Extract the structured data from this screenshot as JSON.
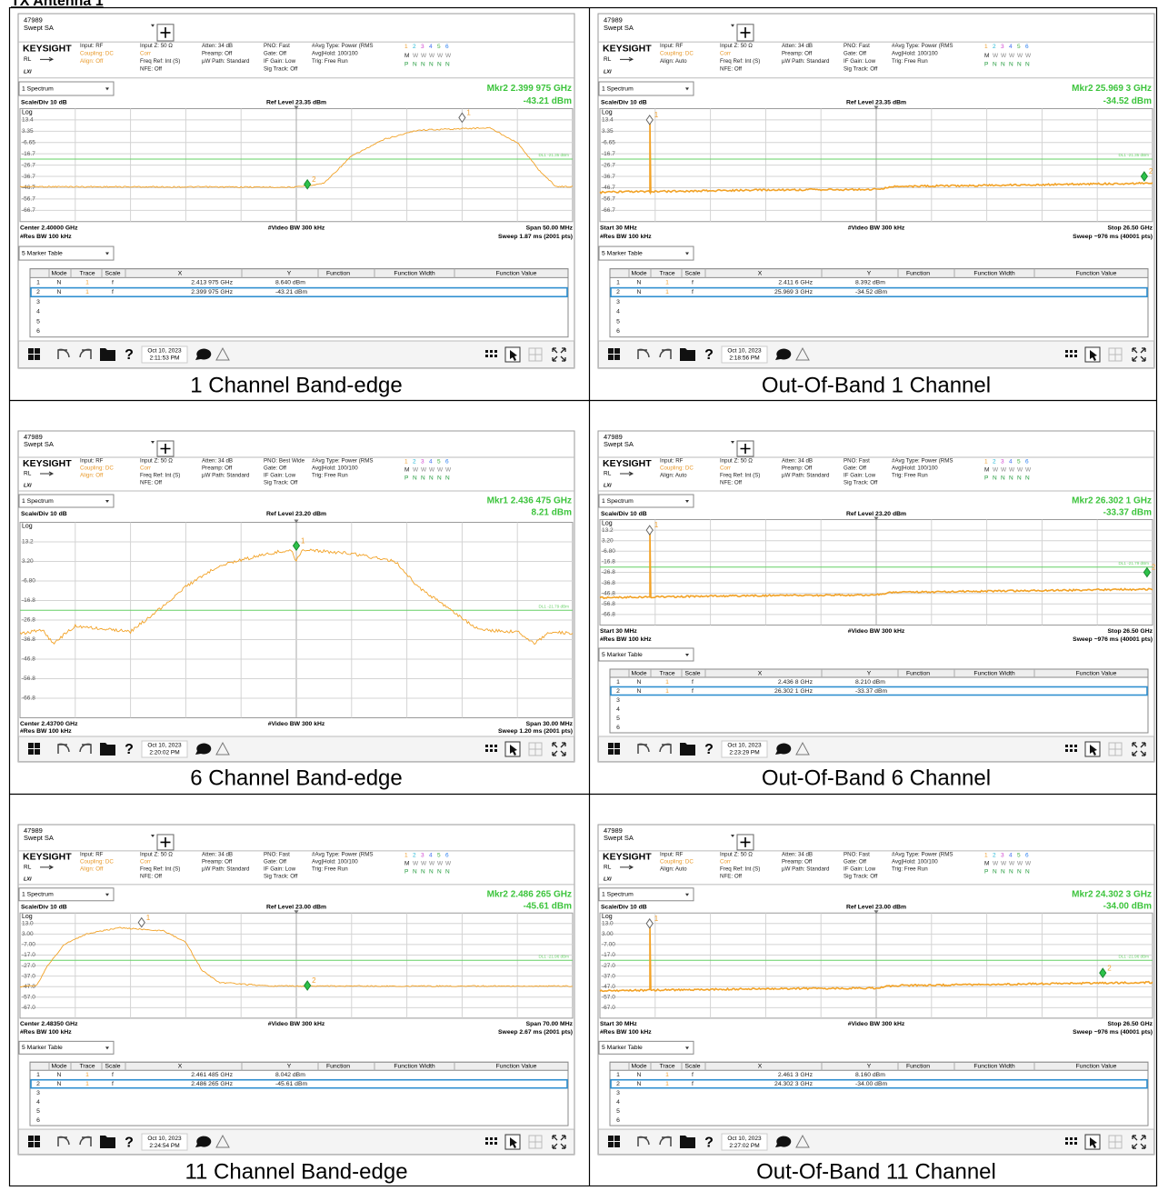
{
  "header": {
    "title": "TX Antenna 1"
  },
  "common": {
    "instrument_id": "47989",
    "mode": "Swept SA",
    "brand": "KEYSIGHT",
    "ref_indicator": "RL",
    "lxi": "LXI",
    "trace_numbers": [
      "1",
      "2",
      "3",
      "4",
      "5",
      "6"
    ],
    "trace_types": [
      "M",
      "W",
      "W",
      "W",
      "W",
      "W"
    ],
    "detectors": [
      "P",
      "N",
      "N",
      "N",
      "N",
      "N"
    ],
    "view": "1 Spectrum",
    "scale": "Scale/Div 10 dB",
    "log": "Log",
    "video_bw": "#Video BW 300 kHz",
    "res_bw": "#Res BW 100 kHz",
    "table_view": "5 Marker Table",
    "table_header": [
      "Mode",
      "Trace",
      "Scale",
      "X",
      "Y",
      "Function",
      "Function Width",
      "Function Value"
    ],
    "help": "?",
    "date": "Oct 10, 2023"
  },
  "panels": [
    {
      "caption": "1 Channel Band-edge",
      "info": [
        [
          "Input: RF",
          {
            "text": "Coupling: DC",
            "color": "#e89a2c"
          },
          {
            "text": "Align: Off",
            "color": "#e89a2c"
          }
        ],
        [
          "Input Z: 50 Ω",
          {
            "text": "Corr",
            "color": "#e89a2c"
          },
          "Freq Ref: Int (S)",
          "NFE: Off"
        ],
        [
          "Atten: 34 dB",
          "Preamp: Off",
          "µW Path: Standard"
        ],
        [
          "PNO: Fast",
          "Gate: Off",
          "IF Gain: Low",
          "Sig Track: Off"
        ],
        [
          "#Avg Type: Power (RMS",
          "Avg|Hold: 100/100",
          "Trig: Free Run"
        ]
      ],
      "marker_readout": "Mkr2 2.399 975 GHz",
      "marker_value": "-43.21 dBm",
      "ref_level": "Ref Level 23.35 dBm",
      "yticks": [
        "13.4",
        "3.35",
        "-6.65",
        "-16.7",
        "-26.7",
        "-36.7",
        "-46.7",
        "-56.7",
        "-66.7"
      ],
      "display_line": "DL1 -21.35 dBm",
      "markers": [
        "1",
        "2"
      ],
      "left_label": "Center 2.40000 GHz",
      "right_label": "Span 50.00 MHz",
      "sweep": "Sweep 1.87 ms (2001 pts)",
      "table_rows": [
        [
          "1",
          "N",
          "1",
          "f",
          "2.413 975 GHz",
          "8.640 dBm"
        ],
        [
          "2",
          "N",
          "1",
          "f",
          "2.399 975 GHz",
          "-43.21 dBm"
        ],
        [
          "3"
        ],
        [
          "4"
        ],
        [
          "5"
        ],
        [
          "6"
        ]
      ],
      "time": "2:11:53 PM"
    },
    {
      "caption": "Out-Of-Band 1 Channel",
      "info": [
        [
          "Input: RF",
          {
            "text": "Coupling: DC",
            "color": "#e89a2c"
          },
          "Align: Auto"
        ],
        [
          "Input Z: 50 Ω",
          {
            "text": "Corr",
            "color": "#e89a2c"
          },
          "Freq Ref: Int (S)",
          "NFE: Off"
        ],
        [
          "Atten: 34 dB",
          "Preamp: Off",
          "µW Path: Standard"
        ],
        [
          "PNO: Fast",
          "Gate: Off",
          "IF Gain: Low",
          "Sig Track: Off"
        ],
        [
          "#Avg Type: Power (RMS",
          "Avg|Hold: 100/100",
          "Trig: Free Run"
        ]
      ],
      "marker_readout": "Mkr2 25.969 3 GHz",
      "marker_value": "-34.52 dBm",
      "ref_level": "Ref Level 23.35 dBm",
      "yticks": [
        "13.4",
        "3.35",
        "-6.65",
        "-16.7",
        "-26.7",
        "-36.7",
        "-46.7",
        "-56.7",
        "-66.7"
      ],
      "display_line": "DL1 -21.35 dBm",
      "markers": [
        "1",
        "2"
      ],
      "left_label": "Start 30 MHz",
      "right_label": "Stop 26.50 GHz",
      "sweep": "Sweep ~976 ms (40001 pts)",
      "table_rows": [
        [
          "1",
          "N",
          "1",
          "f",
          "2.411 6 GHz",
          "8.392 dBm"
        ],
        [
          "2",
          "N",
          "1",
          "f",
          "25.969 3 GHz",
          "-34.52 dBm"
        ],
        [
          "3"
        ],
        [
          "4"
        ],
        [
          "5"
        ],
        [
          "6"
        ]
      ],
      "time": "2:18:56 PM"
    },
    {
      "caption": "6 Channel Band-edge",
      "info": [
        [
          "Input: RF",
          {
            "text": "Coupling: DC",
            "color": "#e89a2c"
          },
          {
            "text": "Align: Off",
            "color": "#e89a2c"
          }
        ],
        [
          "Input Z: 50 Ω",
          {
            "text": "Corr",
            "color": "#e89a2c"
          },
          "Freq Ref: Int (S)",
          "NFE: Off"
        ],
        [
          "Atten: 34 dB",
          "Preamp: Off",
          "µW Path: Standard"
        ],
        [
          "PNO: Best Wide",
          "Gate: Off",
          "IF Gain: Low",
          "Sig Track: Off"
        ],
        [
          "#Avg Type: Power (RMS",
          "Avg|Hold: 100/100",
          "Trig: Free Run"
        ]
      ],
      "marker_readout": "Mkr1 2.436 475 GHz",
      "marker_value": "8.21 dBm",
      "ref_level": "Ref Level 23.20 dBm",
      "yticks": [
        "13.2",
        "3.20",
        "-6.80",
        "-16.8",
        "-26.8",
        "-36.8",
        "-46.8",
        "-56.8",
        "-66.8"
      ],
      "display_line": "DL1 -21.79 dBm",
      "markers": [
        "1"
      ],
      "left_label": "Center 2.43700 GHz",
      "right_label": "Span 30.00 MHz",
      "sweep": "Sweep 1.20 ms (2001 pts)",
      "time": "2:20:02 PM"
    },
    {
      "caption": "Out-Of-Band 6 Channel",
      "info": [
        [
          "Input: RF",
          {
            "text": "Coupling: DC",
            "color": "#e89a2c"
          },
          "Align: Auto"
        ],
        [
          "Input Z: 50 Ω",
          {
            "text": "Corr",
            "color": "#e89a2c"
          },
          "Freq Ref: Int (S)",
          "NFE: Off"
        ],
        [
          "Atten: 34 dB",
          "Preamp: Off",
          "µW Path: Standard"
        ],
        [
          "PNO: Fast",
          "Gate: Off",
          "IF Gain: Low",
          "Sig Track: Off"
        ],
        [
          "#Avg Type: Power (RMS",
          "Avg|Hold: 100/100",
          "Trig: Free Run"
        ]
      ],
      "marker_readout": "Mkr2 26.302 1 GHz",
      "marker_value": "-33.37 dBm",
      "ref_level": "Ref Level 23.20 dBm",
      "yticks": [
        "13.2",
        "3.20",
        "-6.80",
        "-16.8",
        "-26.8",
        "-36.8",
        "-46.8",
        "-56.8",
        "-66.8"
      ],
      "display_line": "DL1 -21.79 dBm",
      "markers": [
        "1",
        "2"
      ],
      "left_label": "Start 30 MHz",
      "right_label": "Stop 26.50 GHz",
      "sweep": "Sweep ~976 ms (40001 pts)",
      "table_rows": [
        [
          "1",
          "N",
          "1",
          "f",
          "2.436 8 GHz",
          "8.210 dBm"
        ],
        [
          "2",
          "N",
          "1",
          "f",
          "26.302 1 GHz",
          "-33.37 dBm"
        ],
        [
          "3"
        ],
        [
          "4"
        ],
        [
          "5"
        ],
        [
          "6"
        ]
      ],
      "time": "2:23:29 PM"
    },
    {
      "caption": "11 Channel Band-edge",
      "info": [
        [
          "Input: RF",
          {
            "text": "Coupling: DC",
            "color": "#e89a2c"
          },
          {
            "text": "Align: Off",
            "color": "#e89a2c"
          }
        ],
        [
          "Input Z: 50 Ω",
          {
            "text": "Corr",
            "color": "#e89a2c"
          },
          "Freq Ref: Int (S)",
          "NFE: Off"
        ],
        [
          "Atten: 34 dB",
          "Preamp: Off",
          "µW Path: Standard"
        ],
        [
          "PNO: Fast",
          "Gate: Off",
          "IF Gain: Low",
          "Sig Track: Off"
        ],
        [
          "#Avg Type: Power (RMS",
          "Avg|Hold: 100/100",
          "Trig: Free Run"
        ]
      ],
      "marker_readout": "Mkr2 2.486 265 GHz",
      "marker_value": "-45.61 dBm",
      "ref_level": "Ref Level 23.00 dBm",
      "yticks": [
        "13.0",
        "3.00",
        "-7.00",
        "-17.0",
        "-27.0",
        "-37.0",
        "-47.0",
        "-57.0",
        "-67.0"
      ],
      "display_line": "DL1 -21.96 dBm",
      "markers": [
        "1",
        "2"
      ],
      "left_label": "Center 2.48350 GHz",
      "right_label": "Span 70.00 MHz",
      "sweep": "Sweep 2.67 ms (2001 pts)",
      "table_rows": [
        [
          "1",
          "N",
          "1",
          "f",
          "2.461 485 GHz",
          "8.042 dBm"
        ],
        [
          "2",
          "N",
          "1",
          "f",
          "2.486 265 GHz",
          "-45.61 dBm"
        ],
        [
          "3"
        ],
        [
          "4"
        ],
        [
          "5"
        ],
        [
          "6"
        ]
      ],
      "time": "2:24:54 PM"
    },
    {
      "caption": "Out-Of-Band 11 Channel",
      "info": [
        [
          "Input: RF",
          {
            "text": "Coupling: DC",
            "color": "#e89a2c"
          },
          "Align: Auto"
        ],
        [
          "Input Z: 50 Ω",
          {
            "text": "Corr",
            "color": "#e89a2c"
          },
          "Freq Ref: Int (S)",
          "NFE: Off"
        ],
        [
          "Atten: 34 dB",
          "Preamp: Off",
          "µW Path: Standard"
        ],
        [
          "PNO: Fast",
          "Gate: Off",
          "IF Gain: Low",
          "Sig Track: Off"
        ],
        [
          "#Avg Type: Power (RMS",
          "Avg|Hold: 100/100",
          "Trig: Free Run"
        ]
      ],
      "marker_readout": "Mkr2 24.302 3 GHz",
      "marker_value": "-34.00 dBm",
      "ref_level": "Ref Level 23.00 dBm",
      "yticks": [
        "13.0",
        "3.00",
        "-7.00",
        "-17.0",
        "-27.0",
        "-37.0",
        "-47.0",
        "-57.0",
        "-67.0"
      ],
      "display_line": "DL1 -21.96 dBm",
      "markers": [
        "1",
        "2"
      ],
      "left_label": "Start 30 MHz",
      "right_label": "Stop 26.50 GHz",
      "sweep": "Sweep ~976 ms (40001 pts)",
      "table_rows": [
        [
          "1",
          "N",
          "1",
          "f",
          "2.461 3 GHz",
          "8.160 dBm"
        ],
        [
          "2",
          "N",
          "1",
          "f",
          "24.302 3 GHz",
          "-34.00 dBm"
        ],
        [
          "3"
        ],
        [
          "4"
        ],
        [
          "5"
        ],
        [
          "6"
        ]
      ],
      "time": "2:27:02 PM"
    }
  ]
}
